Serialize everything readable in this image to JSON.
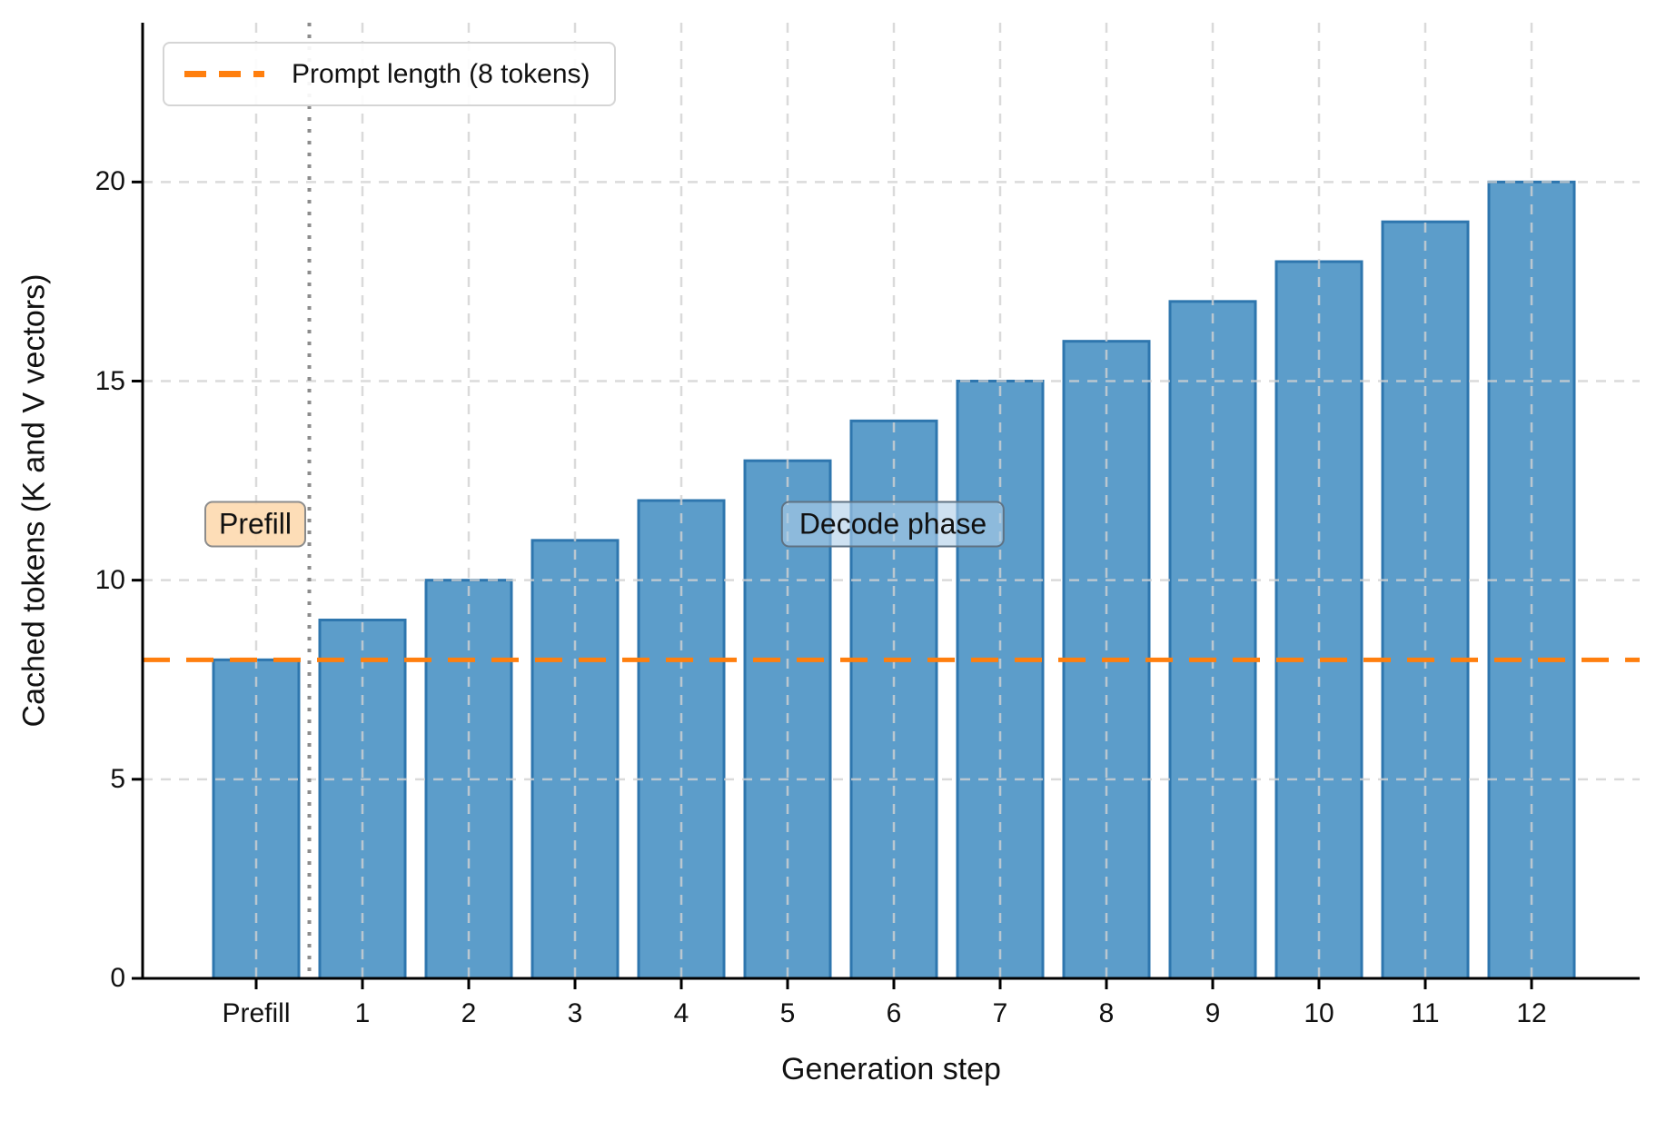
{
  "chart_data": {
    "type": "bar",
    "categories": [
      "Prefill",
      "1",
      "2",
      "3",
      "4",
      "5",
      "6",
      "7",
      "8",
      "9",
      "10",
      "11",
      "12"
    ],
    "values": [
      8,
      9,
      10,
      11,
      12,
      13,
      14,
      15,
      16,
      17,
      18,
      19,
      20
    ],
    "title": "",
    "xlabel": "Generation step",
    "ylabel": "Cached tokens (K and V vectors)",
    "ylim": [
      0,
      24
    ],
    "yticks": [
      0,
      5,
      10,
      15,
      20
    ],
    "grid": true,
    "legend": {
      "label": "Prompt length (8 tokens)",
      "position": "upper left"
    },
    "reference_lines": {
      "hline": {
        "y": 8,
        "meaning": "Prompt length (8 tokens)",
        "style": "dashed",
        "color": "#ff7f0e"
      },
      "vline": {
        "between_categories": [
          "Prefill",
          "1"
        ],
        "meaning": "prefill/decode boundary",
        "style": "dotted",
        "color": "#808080"
      }
    },
    "annotations": [
      {
        "text": "Prefill",
        "x_category": "Prefill",
        "y": 11.4,
        "bg": "#fbdcb8"
      },
      {
        "text": "Decode phase",
        "x_category": "6",
        "y": 11.4,
        "bg": "#aecde8"
      }
    ],
    "colors": {
      "bar_fill": "#5c9dca",
      "bar_edge": "#2e76ae",
      "grid": "#d2d2d2",
      "axis": "#000000",
      "hline": "#ff7f0e",
      "vline": "#808080"
    }
  }
}
